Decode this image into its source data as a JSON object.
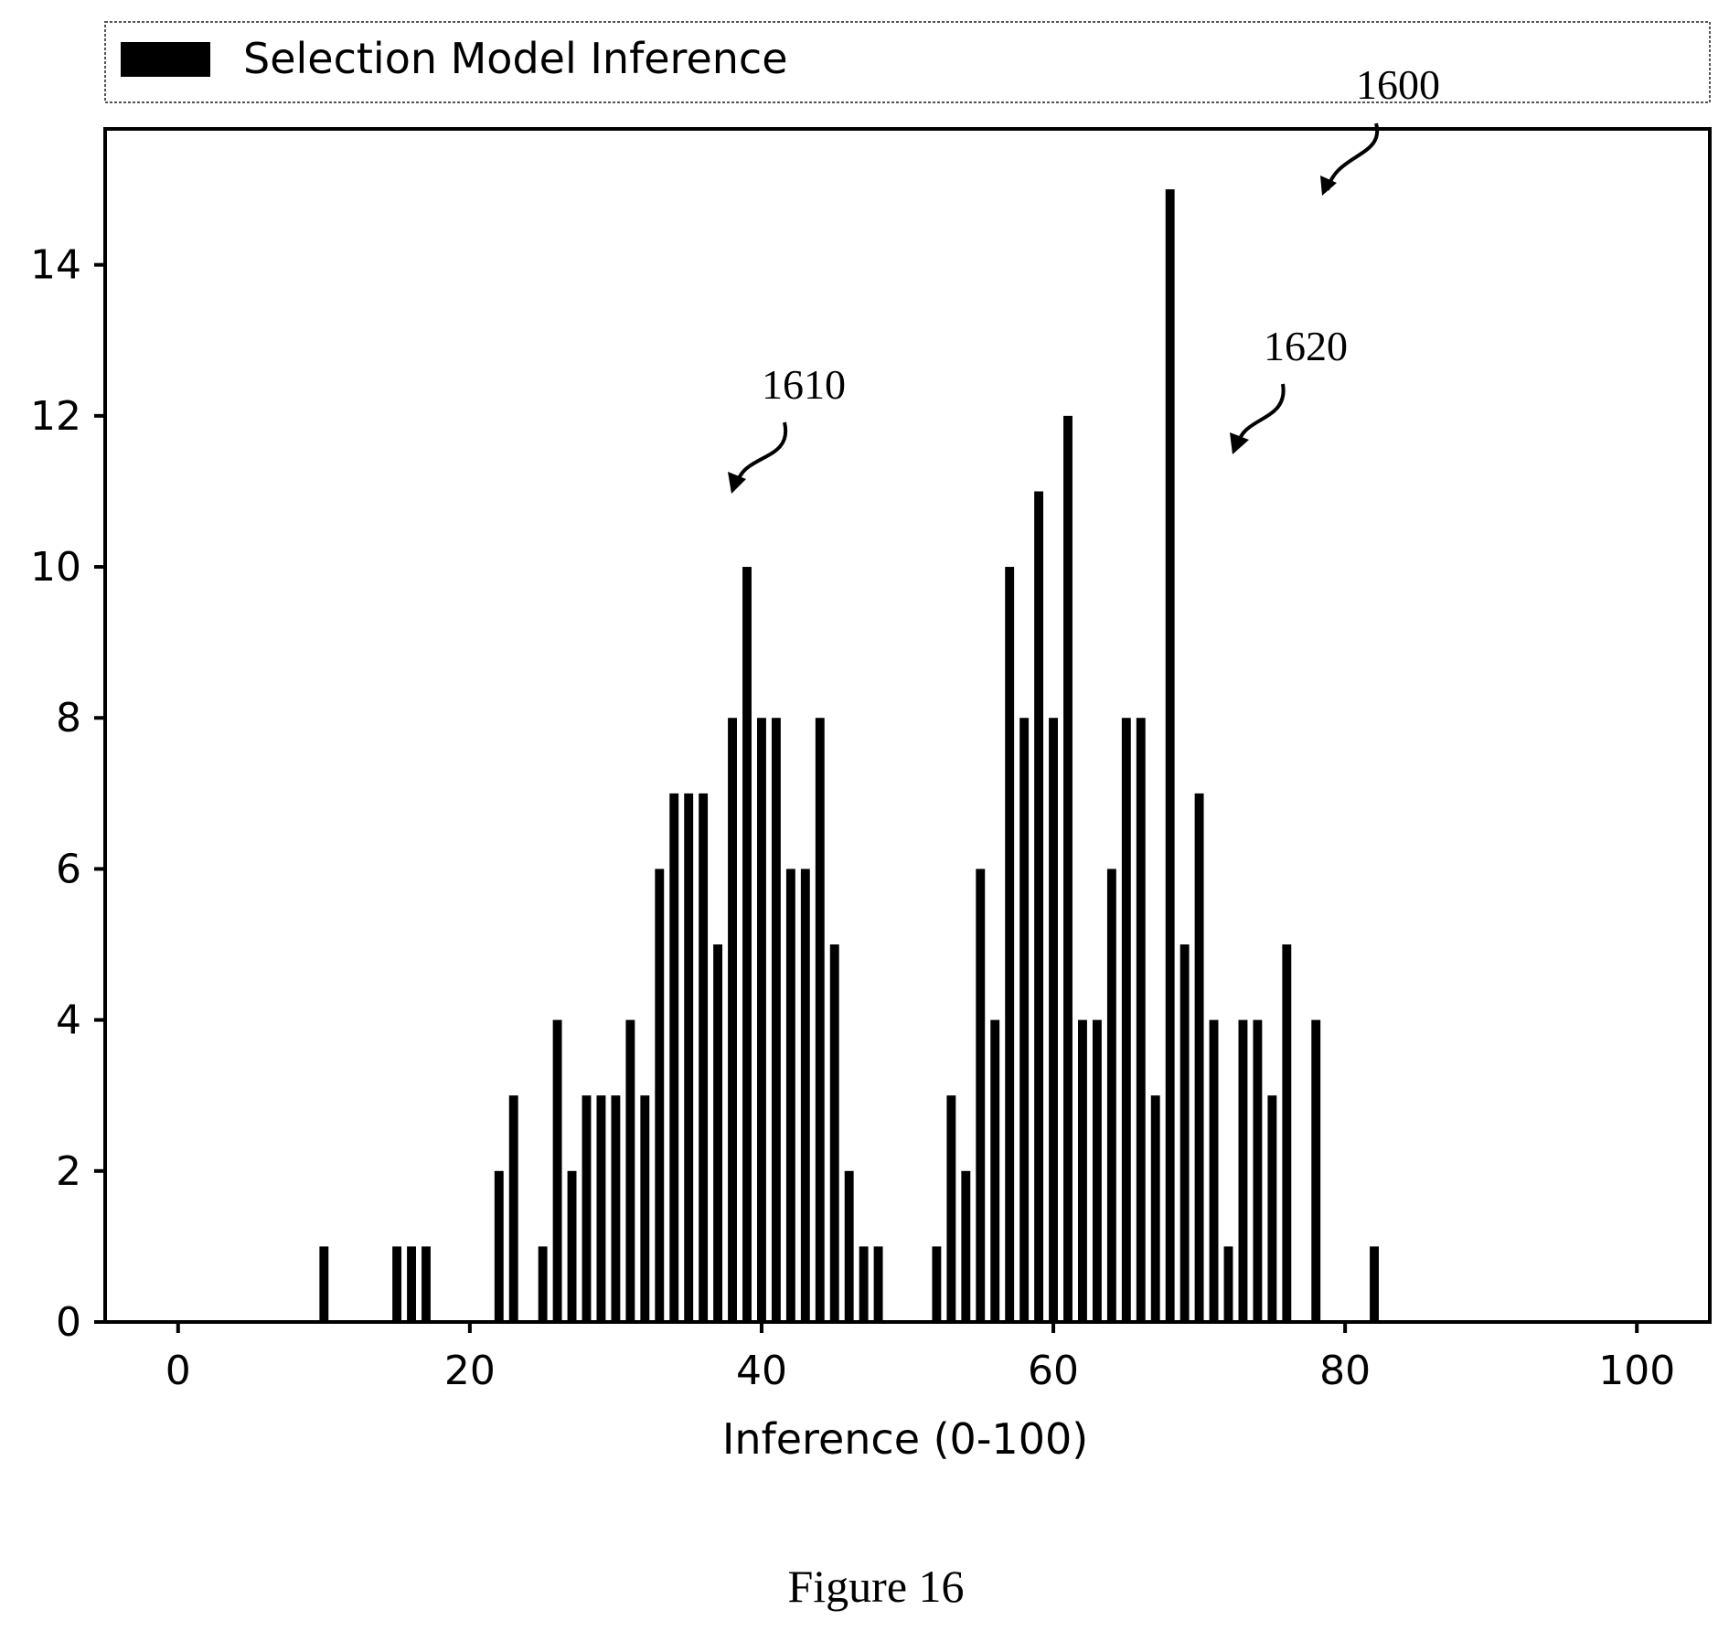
{
  "figure_caption": "Figure 16",
  "ref_labels": {
    "figure": "1600",
    "peak_left": "1610",
    "peak_right": "1620"
  },
  "colors": {
    "bar": "#000000",
    "axis": "#000000",
    "background": "#ffffff"
  },
  "chart_data": {
    "type": "bar",
    "title": "",
    "xlabel": "Inference (0-100)",
    "ylabel": "",
    "xlim": [
      -5,
      105
    ],
    "ylim": [
      0,
      15.8
    ],
    "xticks": [
      0,
      20,
      40,
      60,
      80,
      100
    ],
    "yticks": [
      0,
      2,
      4,
      6,
      8,
      10,
      12,
      14
    ],
    "grid": false,
    "legend_position": "top",
    "series": [
      {
        "name": "Selection Model Inference",
        "x": [
          10,
          15,
          16,
          17,
          22,
          23,
          25,
          26,
          27,
          28,
          29,
          30,
          31,
          32,
          33,
          34,
          35,
          36,
          37,
          38,
          39,
          40,
          41,
          42,
          43,
          44,
          45,
          46,
          47,
          48,
          52,
          53,
          54,
          55,
          56,
          57,
          58,
          59,
          60,
          61,
          62,
          63,
          64,
          65,
          66,
          67,
          68,
          69,
          70,
          71,
          72,
          73,
          74,
          75,
          76,
          78,
          82
        ],
        "values": [
          1,
          1,
          1,
          1,
          2,
          3,
          1,
          4,
          2,
          3,
          3,
          3,
          4,
          3,
          6,
          7,
          7,
          7,
          5,
          8,
          10,
          8,
          8,
          6,
          6,
          8,
          5,
          2,
          1,
          1,
          1,
          3,
          2,
          6,
          4,
          10,
          8,
          11,
          8,
          12,
          4,
          4,
          6,
          8,
          8,
          3,
          15,
          5,
          7,
          4,
          1,
          4,
          4,
          3,
          5,
          4,
          1
        ]
      }
    ]
  }
}
